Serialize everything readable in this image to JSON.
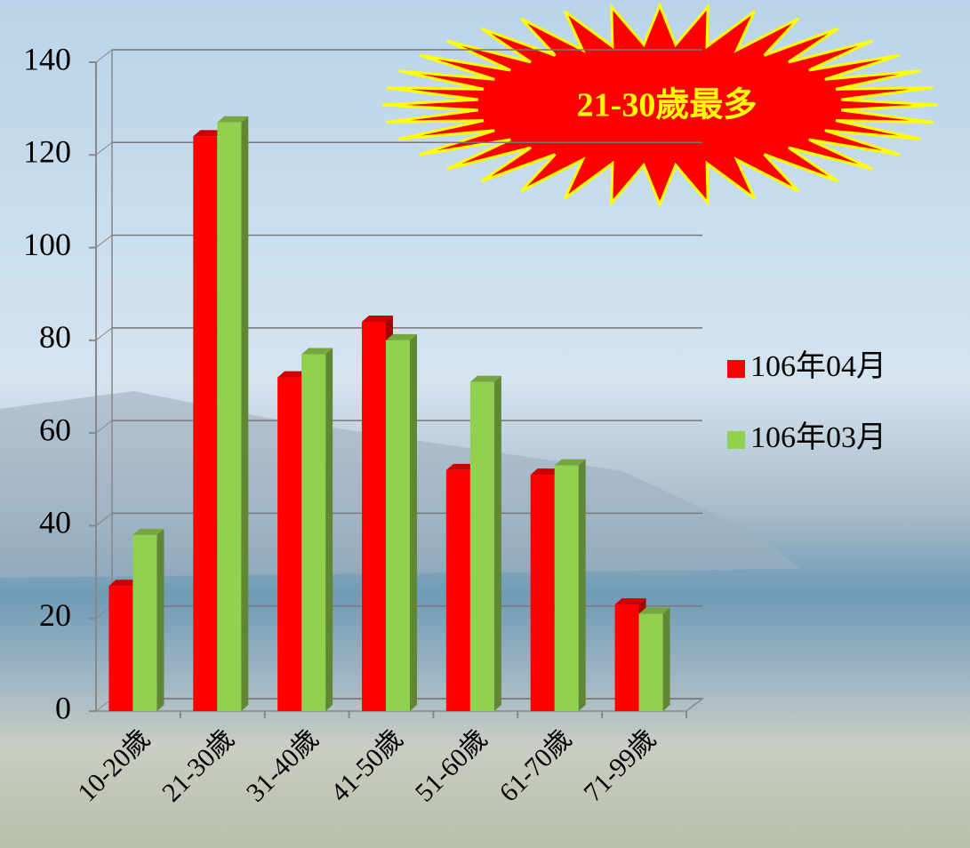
{
  "chart_data": {
    "type": "bar3d",
    "annotation": "21-30歲最多",
    "categories": [
      "10-20歲",
      "21-30歲",
      "31-40歲",
      "41-50歲",
      "51-60歲",
      "61-70歲",
      "71-99歲"
    ],
    "series": [
      {
        "name": "106年04月",
        "color": "#ff0000",
        "values": [
          27,
          124,
          72,
          84,
          52,
          51,
          23
        ]
      },
      {
        "name": "106年03月",
        "color": "#92d050",
        "values": [
          38,
          127,
          77,
          80,
          71,
          53,
          21
        ]
      }
    ],
    "ylim": [
      0,
      140
    ],
    "yticks": [
      0,
      20,
      40,
      60,
      80,
      100,
      120,
      140
    ],
    "grid": true,
    "legend": "right"
  }
}
